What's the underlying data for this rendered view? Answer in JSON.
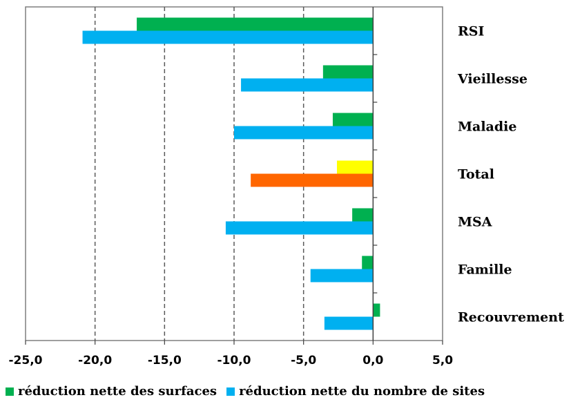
{
  "chart_data": {
    "type": "bar",
    "orientation": "horizontal",
    "categories": [
      "RSI",
      "Vieillesse",
      "Maladie",
      "Total",
      "MSA",
      "Famille",
      "Recouvrement"
    ],
    "series": [
      {
        "name": "réduction nette des surfaces",
        "color": "#00b050",
        "values": [
          -17.0,
          -3.6,
          -2.9,
          -2.6,
          -1.5,
          -0.8,
          0.5
        ],
        "point_colors": [
          "#00b050",
          "#00b050",
          "#00b050",
          "#ffff00",
          "#00b050",
          "#00b050",
          "#00b050"
        ]
      },
      {
        "name": "réduction nette du nombre de sites",
        "color": "#00b0f0",
        "values": [
          -20.9,
          -9.5,
          -10.0,
          -8.8,
          -10.6,
          -4.5,
          -3.5
        ],
        "point_colors": [
          "#00b0f0",
          "#00b0f0",
          "#00b0f0",
          "#ff6600",
          "#00b0f0",
          "#00b0f0",
          "#00b0f0"
        ]
      }
    ],
    "xlim": [
      -25,
      5
    ],
    "xticks": [
      -25,
      -20,
      -15,
      -10,
      -5,
      0,
      5
    ],
    "xtick_labels": [
      "-25,0",
      "-20,0",
      "-15,0",
      "-10,0",
      "-5,0",
      "0,0",
      "5,0"
    ],
    "grid": "vertical dashed",
    "legend": "bottom",
    "title": "",
    "xlabel": "",
    "ylabel": ""
  }
}
